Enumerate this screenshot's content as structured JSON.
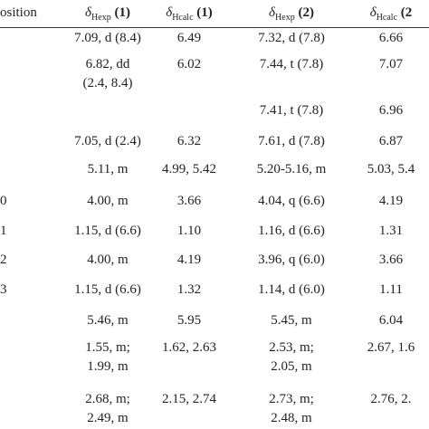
{
  "table": {
    "header": [
      {
        "text": "osition"
      },
      {
        "symbol": "δ",
        "sub": "Hexp",
        "label": "(1)"
      },
      {
        "symbol": "δ",
        "sub": "Hcalc",
        "label": "(1)"
      },
      {
        "symbol": "δ",
        "sub": "Hexp",
        "label": "(2)"
      },
      {
        "symbol": "δ",
        "sub": "Hcalc",
        "label": "(2"
      }
    ],
    "rows": [
      {
        "exp1": [
          "7.09, d (8.4)"
        ],
        "calc1": [
          "6.49"
        ],
        "exp2": [
          "7.32, d (7.8)"
        ],
        "calc2": [
          "6.66"
        ]
      },
      {
        "exp1": [
          "6.82, dd",
          "(2.4, 8.4)"
        ],
        "calc1": [
          "6.02"
        ],
        "exp2": [
          "7.44, t (7.8)"
        ],
        "calc2": [
          "7.07"
        ]
      },
      {
        "exp2": [
          "7.41, t (7.8)"
        ],
        "calc2": [
          "6.96"
        ]
      },
      {
        "exp1": [
          "7.05, d (2.4)"
        ],
        "calc1": [
          "6.32"
        ],
        "exp2": [
          "7.61, d (7.8)"
        ],
        "calc2": [
          "6.87"
        ]
      },
      {
        "exp1": [
          "5.11, m"
        ],
        "calc1": [
          "4.99, 5.42"
        ],
        "exp2": [
          "5.20-5.16, m"
        ],
        "calc2": [
          "5.03, 5.4"
        ]
      },
      {
        "position": "0",
        "exp1": [
          "4.00, m"
        ],
        "calc1": [
          "3.66"
        ],
        "exp2": [
          "4.04, q (6.6)"
        ],
        "calc2": [
          "4.19"
        ]
      },
      {
        "position": "1",
        "exp1": [
          "1.15, d (6.6)"
        ],
        "calc1": [
          "1.10"
        ],
        "exp2": [
          "1.16, d (6.6)"
        ],
        "calc2": [
          "1.31"
        ]
      },
      {
        "position": "2",
        "exp1": [
          "4.00, m"
        ],
        "calc1": [
          "4.19"
        ],
        "exp2": [
          "3.96, q (6.0)"
        ],
        "calc2": [
          "3.66"
        ]
      },
      {
        "position": "3",
        "exp1": [
          "1.15, d (6.6)"
        ],
        "calc1": [
          "1.32"
        ],
        "exp2": [
          "1.14, d (6.0)"
        ],
        "calc2": [
          "1.11"
        ]
      },
      {
        "exp1": [
          "5.46, m"
        ],
        "calc1": [
          "5.95"
        ],
        "exp2": [
          "5.45, m"
        ],
        "calc2": [
          "6.04"
        ]
      },
      {
        "exp1": [
          "1.55, m;",
          "1.99, m"
        ],
        "calc1": [
          "1.62, 2.63"
        ],
        "exp2": [
          "2.53, m;",
          "2.05, m"
        ],
        "calc2": [
          "2.67, 1.6"
        ]
      },
      {
        "exp1": [
          "2.68, m;",
          "2.49, m"
        ],
        "calc1": [
          "2.15, 2.74"
        ],
        "exp2": [
          "2.73, m;",
          "2.48, m"
        ],
        "calc2": [
          "2.76, 2."
        ]
      }
    ]
  }
}
